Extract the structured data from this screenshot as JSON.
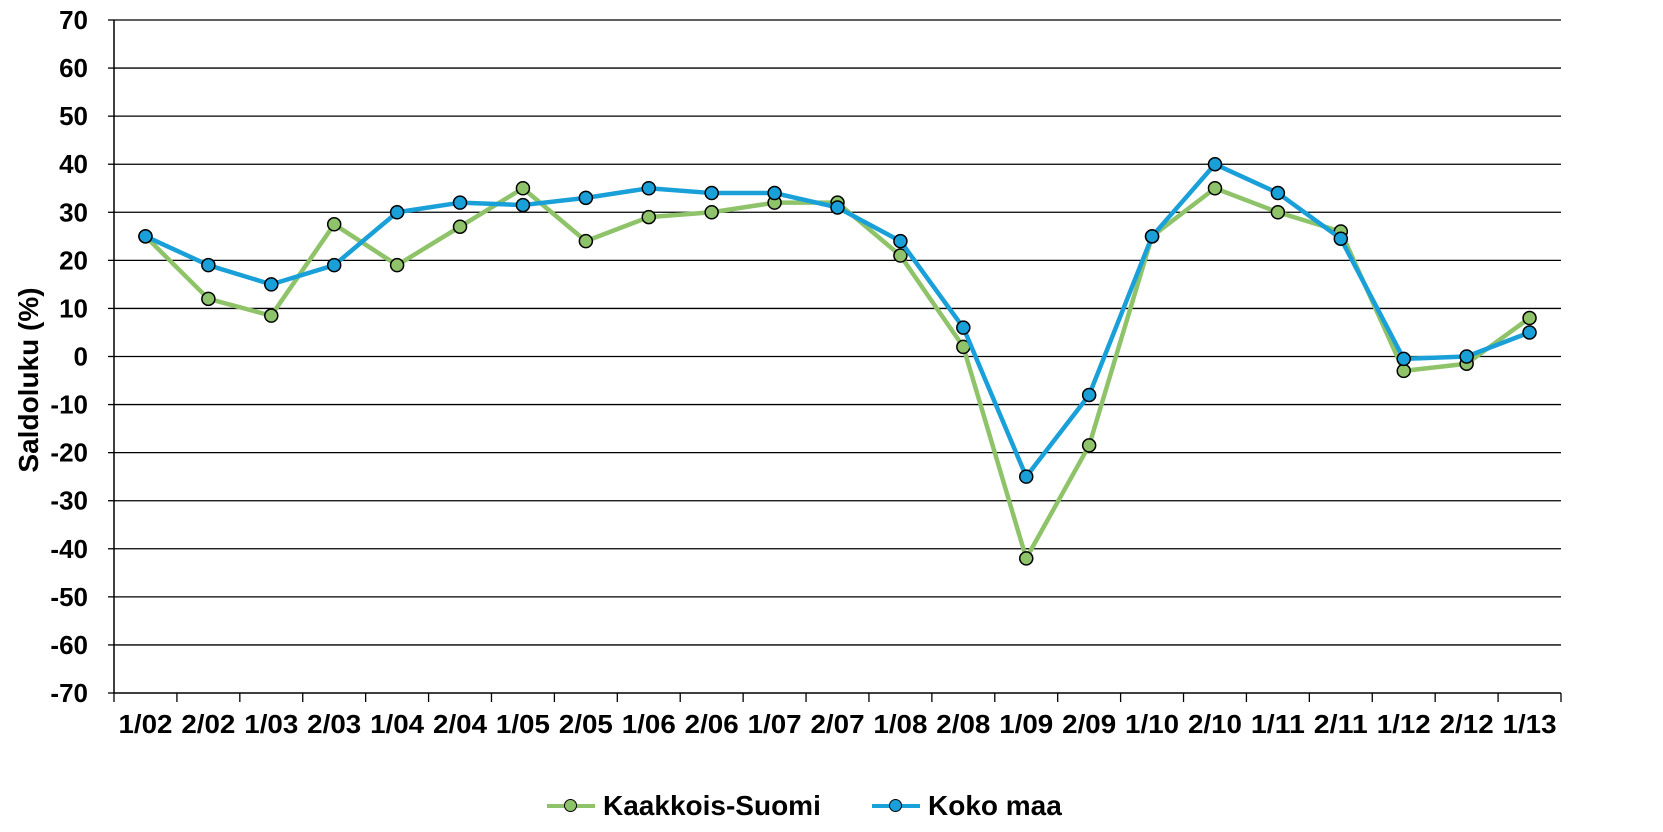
{
  "chart_data": {
    "type": "line",
    "ylabel": "Saldoluku (%)",
    "ylim": [
      -70,
      70
    ],
    "yticks": [
      70,
      60,
      50,
      40,
      30,
      20,
      10,
      0,
      -10,
      -20,
      -30,
      -40,
      -50,
      -60,
      -70
    ],
    "grid": true,
    "legend_position": "bottom",
    "categories": [
      "1/02",
      "2/02",
      "1/03",
      "2/03",
      "1/04",
      "2/04",
      "1/05",
      "2/05",
      "1/06",
      "2/06",
      "1/07",
      "2/07",
      "1/08",
      "2/08",
      "1/09",
      "2/09",
      "1/10",
      "2/10",
      "1/11",
      "2/11",
      "1/12",
      "2/12",
      "1/13"
    ],
    "series": [
      {
        "name": "Kaakkois-Suomi",
        "color": "#8fc36a",
        "values": [
          25,
          12,
          8.5,
          27.5,
          19,
          27,
          35,
          24,
          29,
          30,
          32,
          32,
          21,
          2,
          -42,
          -18.5,
          25,
          35,
          30,
          26,
          -3,
          -1.5,
          8
        ]
      },
      {
        "name": "Koko maa",
        "color": "#1aa0d8",
        "values": [
          25,
          19,
          15,
          19,
          30,
          32,
          31.5,
          33,
          35,
          34,
          34,
          31,
          24,
          6,
          -25,
          -8,
          25,
          40,
          34,
          24.5,
          -0.5,
          0,
          5
        ]
      }
    ]
  }
}
